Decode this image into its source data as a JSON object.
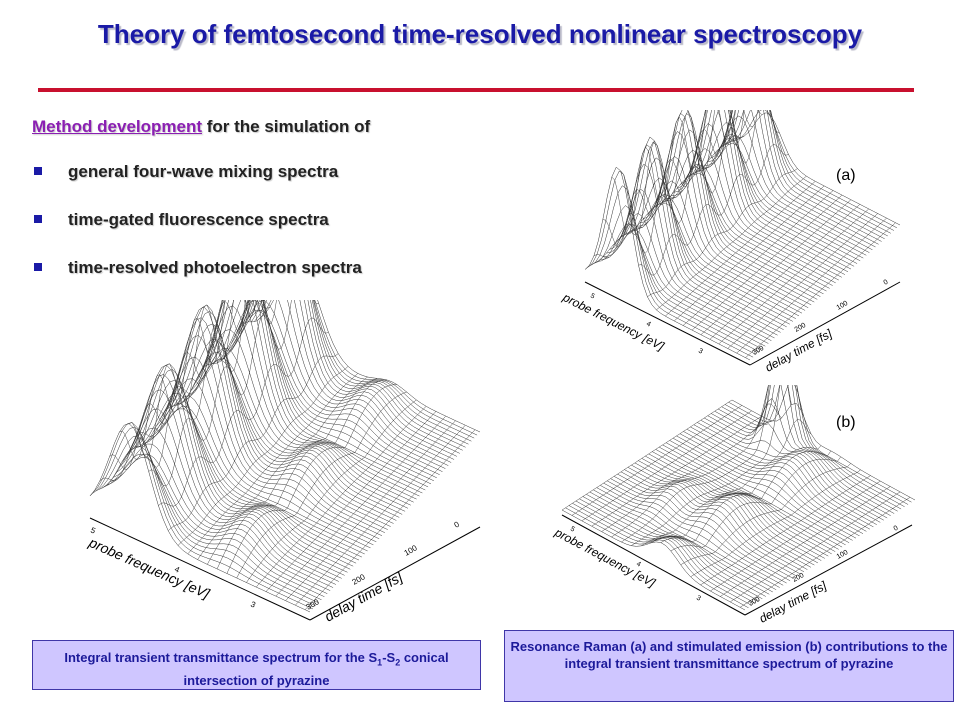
{
  "title": "Theory of femtosecond time-resolved nonlinear spectroscopy",
  "intro": {
    "link": "Method development",
    "rest": " for the simulation of"
  },
  "bullets": [
    {
      "label": "general four-wave mixing spectra"
    },
    {
      "label": "time-gated fluorescence spectra"
    },
    {
      "label": "time-resolved photoelectron spectra"
    }
  ],
  "plots": {
    "main": {
      "x_axis": "probe frequency [eV]",
      "x_ticks": [
        "5",
        "4",
        "3"
      ],
      "y_axis": "delay time [fs]",
      "y_ticks": [
        "300",
        "200",
        "100",
        "0"
      ]
    },
    "a": {
      "panel": "(a)",
      "x_axis": "probe frequency [eV]",
      "x_ticks": [
        "5",
        "4",
        "3"
      ],
      "y_axis": "delay time [fs]",
      "y_ticks": [
        "300",
        "200",
        "100",
        "0"
      ]
    },
    "b": {
      "panel": "(b)",
      "x_axis": "probe frequency [eV]",
      "x_ticks": [
        "5",
        "4",
        "3"
      ],
      "y_axis": "delay time [fs]",
      "y_ticks": [
        "300",
        "200",
        "100",
        "0"
      ]
    }
  },
  "captions": {
    "left": {
      "before": "Integral transient transmittance spectrum for the S",
      "sub1": "1",
      "mid": "-S",
      "sub2": "2",
      "after": " conical intersection of pyrazine"
    },
    "right": "Resonance Raman (a) and stimulated emission (b) contributions to the integral transient transmittance spectrum of pyrazine"
  },
  "colors": {
    "title": "#1a1aa6",
    "rule": "#c8102e",
    "link": "#8b1fb3",
    "caption_bg": "#cfc6ff",
    "caption_text": "#1c1a9a"
  }
}
